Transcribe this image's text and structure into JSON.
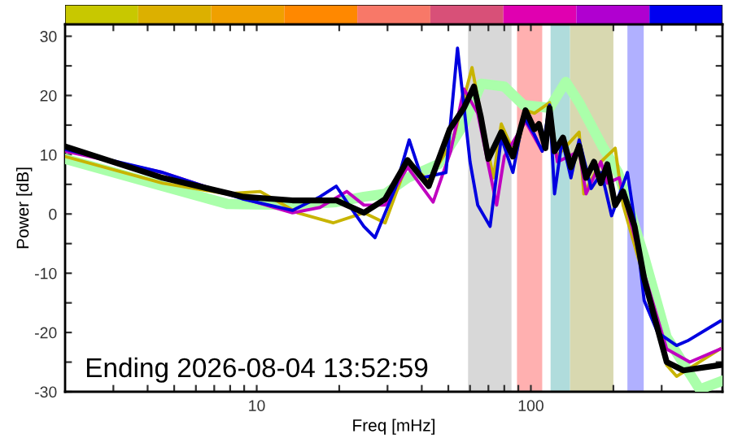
{
  "chart_data": [
    {
      "type": "line",
      "xlabel": "Freq [mHz]",
      "ylabel": "Power [dB]",
      "log": "x",
      "xlim": [
        2,
        500
      ],
      "ylim": [
        -30,
        32
      ],
      "xticks": [
        {
          "value": 3,
          "label": null
        },
        {
          "value": 4,
          "label": null
        },
        {
          "value": 5,
          "label": null
        },
        {
          "value": 6,
          "label": null
        },
        {
          "value": 7,
          "label": null
        },
        {
          "value": 8,
          "label": null
        },
        {
          "value": 9,
          "label": null
        },
        10,
        {
          "value": 20,
          "label": null
        },
        {
          "value": 30,
          "label": null
        },
        {
          "value": 40,
          "label": null
        },
        {
          "value": 50,
          "label": null
        },
        {
          "value": 60,
          "label": null
        },
        {
          "value": 70,
          "label": null
        },
        {
          "value": 80,
          "label": null
        },
        {
          "value": 90,
          "label": null
        },
        100,
        {
          "value": 200,
          "label": null
        },
        {
          "value": 300,
          "label": null
        },
        {
          "value": 400,
          "label": null
        }
      ],
      "yticks": [
        -30,
        {
          "value": -25,
          "label": null
        },
        -20,
        {
          "value": -15,
          "label": null
        },
        -10,
        {
          "value": -5,
          "label": null
        },
        0,
        {
          "value": 5,
          "label": null
        },
        10,
        {
          "value": 15,
          "label": null
        },
        20,
        {
          "value": 25,
          "label": null
        },
        30
      ],
      "grid": false,
      "legend": false,
      "bands": [
        {
          "axis": "x",
          "from": 59,
          "to": 85,
          "color": "#d8d8d8"
        },
        {
          "axis": "x",
          "from": 89,
          "to": 110,
          "color": "#ffb0b0"
        },
        {
          "axis": "x",
          "from": 118,
          "to": 139,
          "color": "#b0dcdc"
        },
        {
          "axis": "x",
          "from": 139,
          "to": 200,
          "color": "#d8d8b0"
        },
        {
          "axis": "x",
          "from": 225,
          "to": 258,
          "color": "#b0b0ff"
        }
      ],
      "annotations": [
        "Ending 2026-08-04 13:52:59"
      ],
      "series": [
        {
          "color": "#aaffaa",
          "x": [
            2,
            4.54,
            7.8,
            13.5,
            19.5,
            24.6,
            29.4,
            35.5,
            46,
            57,
            66,
            80,
            94,
            117,
            134,
            150,
            182,
            208,
            259,
            313,
            413,
            490
          ],
          "values": [
            9.3,
            4.7,
            1.7,
            1.5,
            2.0,
            2.9,
            3.4,
            6.1,
            8.4,
            15.2,
            22,
            21.5,
            18.4,
            17.9,
            22.3,
            18.8,
            11.5,
            7,
            -7.2,
            -20.8,
            -29.6,
            -28.3
          ]
        },
        {
          "color": "#c8b400",
          "x": [
            2,
            4.54,
            7.8,
            10.3,
            14.1,
            19,
            24.6,
            29.4,
            35.5,
            42.4,
            52,
            61,
            65.6,
            73,
            78,
            88,
            95.6,
            103,
            117,
            124,
            150,
            156,
            180,
            203,
            217,
            259,
            313,
            340,
            490
          ],
          "values": [
            9.7,
            5.2,
            3.4,
            3.8,
            0.2,
            -1.5,
            0.2,
            -1.5,
            8.8,
            5.6,
            12.5,
            24.7,
            17,
            6.1,
            15.2,
            9.7,
            17.5,
            17,
            18.8,
            9.7,
            13.8,
            3.4,
            8.8,
            11.1,
            1.5,
            -10.9,
            -25.5,
            -27.4,
            -22.8
          ]
        },
        {
          "color": "#c000c0",
          "x": [
            2,
            4.54,
            7.8,
            13.5,
            17,
            21.3,
            24.6,
            29.4,
            35.5,
            44,
            51,
            57,
            64,
            75,
            80,
            95.6,
            110,
            117,
            125,
            150,
            159,
            180,
            190,
            210,
            259,
            313,
            380,
            490
          ],
          "values": [
            10.6,
            7,
            3.4,
            0.2,
            1.1,
            3.8,
            1.5,
            1.5,
            7.9,
            2.0,
            10.6,
            21.1,
            17,
            1.5,
            9.7,
            15.6,
            10.6,
            17,
            8.8,
            10.6,
            3.4,
            8.8,
            5.2,
            6.1,
            -10,
            -22.8,
            -25,
            -22.8
          ]
        },
        {
          "color": "#0000e0",
          "x": [
            2,
            4.54,
            8.96,
            13.5,
            17,
            19.5,
            22,
            24.6,
            27,
            32,
            36,
            40,
            49,
            54,
            60,
            64,
            71,
            78,
            86,
            94,
            103,
            110,
            117,
            122,
            130,
            140,
            150,
            166,
            181,
            197,
            225,
            242,
            259,
            290,
            340,
            373,
            490
          ],
          "values": [
            10.9,
            7,
            2.5,
            0.6,
            2.9,
            4.7,
            1.1,
            -2.1,
            -4,
            4.3,
            12.5,
            6.1,
            7,
            28,
            8.8,
            1.5,
            -2.1,
            12.9,
            7,
            16.5,
            13.4,
            10.6,
            18.4,
            3.4,
            12.5,
            6.1,
            12.5,
            4.3,
            7,
            -0.3,
            7,
            -2.8,
            -14.6,
            -20,
            -22.2,
            -21.4,
            -18.1
          ]
        },
        {
          "color": "#000000",
          "x": [
            2,
            4.54,
            8.96,
            13.5,
            19.5,
            24.6,
            29.4,
            35.5,
            42.4,
            50.6,
            57,
            62,
            65.6,
            70,
            78,
            86,
            95.6,
            103,
            107,
            113,
            117,
            122,
            131,
            140,
            150,
            159,
            170,
            180,
            190,
            203,
            217,
            239,
            259,
            285,
            313,
            360,
            490
          ],
          "values": [
            11.4,
            6.1,
            2.9,
            2.3,
            2.3,
            0.2,
            2.5,
            9.1,
            4.7,
            14.3,
            17.9,
            21.5,
            16.5,
            9.3,
            13.8,
            9.7,
            17.5,
            14.3,
            15.2,
            11.1,
            17.9,
            10.6,
            12.9,
            7.9,
            11.5,
            6.1,
            8.8,
            5.2,
            8.4,
            1.5,
            3.8,
            -2.1,
            -10.9,
            -18.1,
            -25,
            -26.4,
            -25.5
          ]
        }
      ]
    }
  ]
}
